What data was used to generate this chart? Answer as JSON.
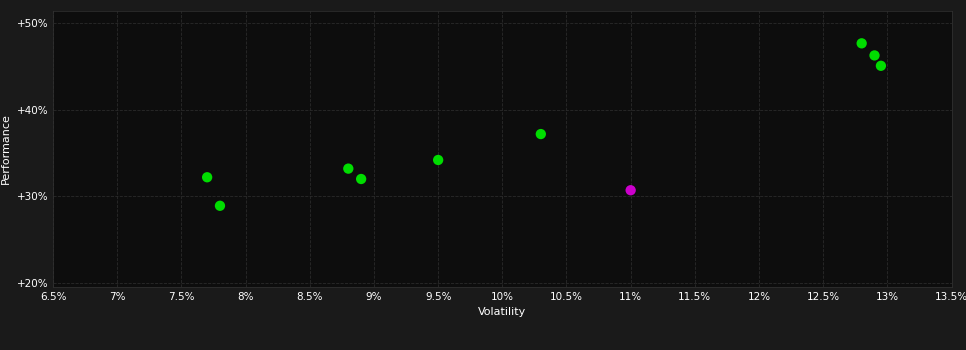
{
  "background_color": "#1a1a1a",
  "plot_bg_color": "#0d0d0d",
  "grid_linestyle": "--",
  "xlabel": "Volatility",
  "ylabel": "Performance",
  "xlim": [
    0.065,
    0.135
  ],
  "ylim": [
    0.195,
    0.515
  ],
  "xtick_vals": [
    0.065,
    0.07,
    0.075,
    0.08,
    0.085,
    0.09,
    0.095,
    0.1,
    0.105,
    0.11,
    0.115,
    0.12,
    0.125,
    0.13,
    0.135
  ],
  "ytick_vals": [
    0.2,
    0.3,
    0.4,
    0.5
  ],
  "green_points": [
    [
      0.077,
      0.322
    ],
    [
      0.078,
      0.289
    ],
    [
      0.088,
      0.332
    ],
    [
      0.089,
      0.32
    ],
    [
      0.095,
      0.342
    ],
    [
      0.103,
      0.372
    ],
    [
      0.128,
      0.477
    ],
    [
      0.129,
      0.463
    ],
    [
      0.1295,
      0.451
    ]
  ],
  "magenta_points": [
    [
      0.11,
      0.307
    ]
  ],
  "point_color_green": "#00dd00",
  "point_color_magenta": "#cc00cc",
  "marker_size": 55,
  "text_color": "#ffffff",
  "grid_color": "#2a2a2a",
  "axis_label_fontsize": 8,
  "tick_fontsize": 7.5,
  "spine_color": "#333333"
}
